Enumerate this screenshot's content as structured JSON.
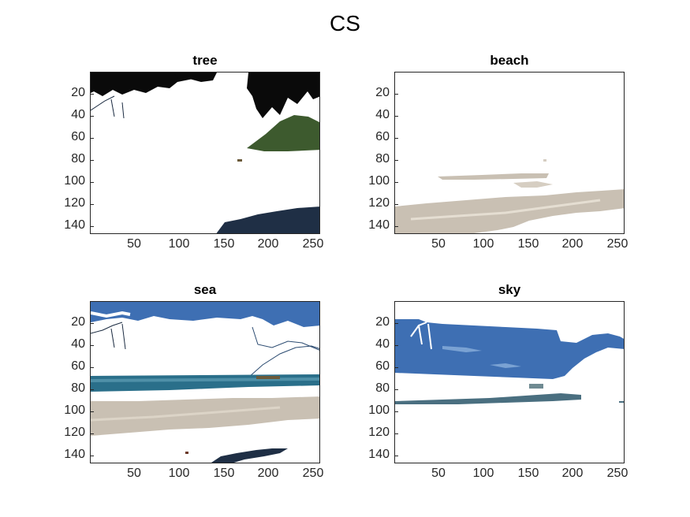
{
  "figure": {
    "title": "CS"
  },
  "panels": [
    {
      "id": "tree",
      "title": "tree"
    },
    {
      "id": "beach",
      "title": "beach"
    },
    {
      "id": "sea",
      "title": "sea"
    },
    {
      "id": "sky",
      "title": "sky"
    }
  ],
  "axes": {
    "y_ticks": [
      "20",
      "40",
      "60",
      "80",
      "100",
      "120",
      "140"
    ],
    "x_ticks": [
      "50",
      "100",
      "150",
      "200",
      "250"
    ]
  },
  "colors": {
    "axis": "#262626",
    "background": "#ffffff",
    "tree_foliage": "#0a0a0a",
    "hill_green": "#3d5a2e",
    "dark_water": "#1f2f45",
    "sand": "#c9c0b3",
    "sky_blue": "#3e6fb3",
    "sea_teal": "#2a6f8a"
  }
}
